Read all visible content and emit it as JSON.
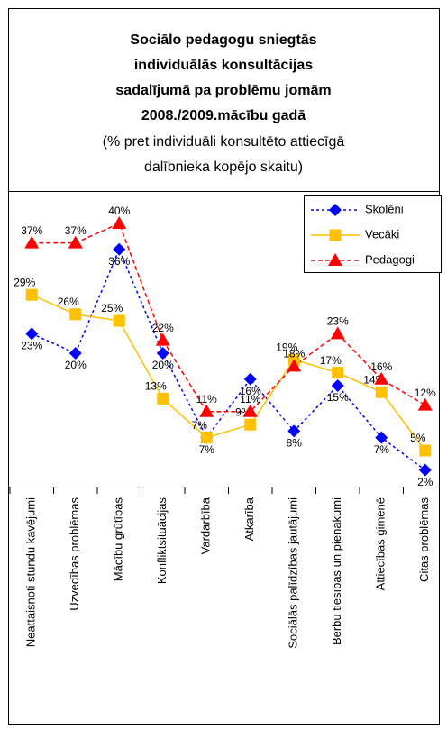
{
  "chart_data": {
    "type": "line",
    "title": [
      "Sociālo pedagogu sniegtās",
      "individuālās konsultācijas",
      "sadalījumā pa problēmu jomām",
      "2008./2009.mācību gadā"
    ],
    "subtitle": [
      "(% pret individuāli konsultēto attiecīgā",
      "dalībnieka kopējo skaitu)"
    ],
    "categories": [
      "Neattaisnoti stundu kavējumi",
      "Uzvedības problēmas",
      "Mācību grūtības",
      "Konfliktsituācijas",
      "Vardarbība",
      "Atkarība",
      "Sociālās palīdzības jautājumi",
      "Bērbu tiesības un pienākumi",
      "Attiecības ģimenē",
      "Citas problēmas"
    ],
    "series": [
      {
        "name": "Skolēni",
        "color": "#0000ff",
        "marker": "diamond",
        "dash": "dotted",
        "values": [
          23,
          20,
          36,
          20,
          7,
          16,
          8,
          15,
          7,
          2
        ],
        "value_labels": [
          "23%",
          "20%",
          "36%",
          "20%",
          "7%",
          "16%",
          "8%",
          "15%",
          "7%",
          "2%"
        ]
      },
      {
        "name": "Vecāki",
        "color": "#ffc000",
        "marker": "square",
        "dash": "solid",
        "values": [
          29,
          26,
          25,
          13,
          7,
          9,
          19,
          17,
          14,
          5
        ],
        "value_labels": [
          "29%",
          "26%",
          "25%",
          "13%",
          "7%",
          "9%",
          "19%",
          "17%",
          "14%",
          "5%"
        ]
      },
      {
        "name": "Pedagogi",
        "color": "#ff0000",
        "marker": "triangle",
        "dash": "dashed",
        "values": [
          37,
          37,
          40,
          22,
          11,
          11,
          18,
          23,
          16,
          12
        ],
        "value_labels": [
          "37%",
          "37%",
          "40%",
          "22%",
          "11%",
          "11%",
          "18%",
          "23%",
          "16%",
          "12%"
        ]
      }
    ],
    "ylim": [
      0,
      45
    ],
    "legend": "top-right"
  }
}
